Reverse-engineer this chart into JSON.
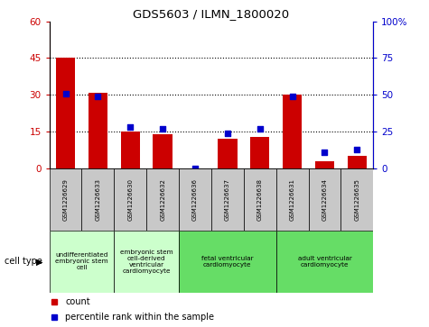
{
  "title": "GDS5603 / ILMN_1800020",
  "samples": [
    "GSM1226629",
    "GSM1226633",
    "GSM1226630",
    "GSM1226632",
    "GSM1226636",
    "GSM1226637",
    "GSM1226638",
    "GSM1226631",
    "GSM1226634",
    "GSM1226635"
  ],
  "counts": [
    45,
    31,
    15,
    14,
    0,
    12,
    13,
    30,
    3,
    5
  ],
  "percentiles": [
    51,
    49,
    28,
    27,
    0,
    24,
    27,
    49,
    11,
    13
  ],
  "ylim_left": [
    0,
    60
  ],
  "ylim_right": [
    0,
    100
  ],
  "yticks_left": [
    0,
    15,
    30,
    45,
    60
  ],
  "yticks_right": [
    0,
    25,
    50,
    75,
    100
  ],
  "ytick_labels_right": [
    "0",
    "25",
    "50",
    "75",
    "100%"
  ],
  "hlines": [
    15,
    30,
    45
  ],
  "bar_color": "#cc0000",
  "dot_color": "#0000cc",
  "cell_groups": [
    {
      "label": "undifferentiated\nembryonic stem\ncell",
      "start": 0,
      "end": 2,
      "color": "#ccffcc"
    },
    {
      "label": "embryonic stem\ncell-derived\nventricular\ncardiomyocyte",
      "start": 2,
      "end": 4,
      "color": "#ccffcc"
    },
    {
      "label": "fetal ventricular\ncardiomyocyte",
      "start": 4,
      "end": 7,
      "color": "#66dd66"
    },
    {
      "label": "adult ventricular\ncardiomyocyte",
      "start": 7,
      "end": 10,
      "color": "#66dd66"
    }
  ],
  "legend_count_color": "#cc0000",
  "legend_dot_color": "#0000cc",
  "bg_color": "#ffffff",
  "plot_bg": "#ffffff",
  "tick_label_bg": "#c8c8c8"
}
